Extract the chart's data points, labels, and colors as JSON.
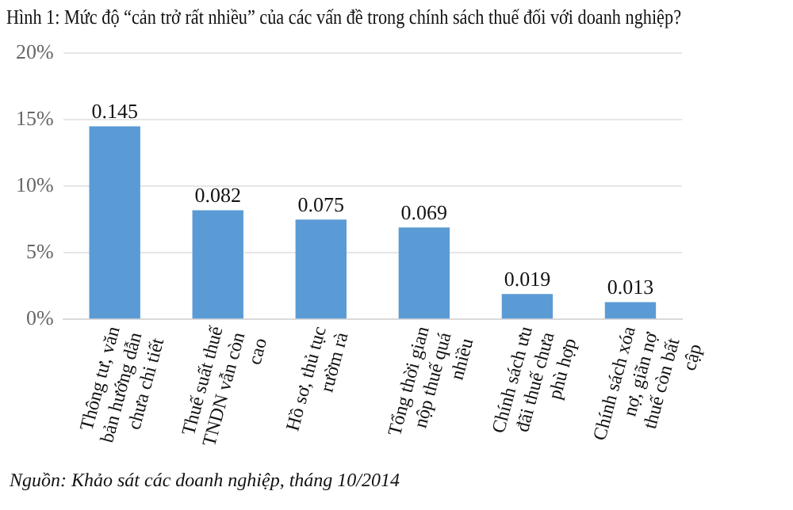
{
  "chart_data": {
    "type": "bar",
    "title": "Hình 1: Mức độ “cản trở rất nhiều” của các vấn đề trong chính sách thuế đối với doanh nghiệp?",
    "categories": [
      "Thông tư, văn bản hướng dẫn chưa chi tiết",
      "Thuế suất thuế TNDN vẫn còn cao",
      "Hồ sơ, thủ tục rườm rà",
      "Tổng thời gian nộp thuế quá nhiều",
      "Chính sách ưu đãi thuế chưa phù hợp",
      "Chính sách xóa nợ, giãn nợ thuế còn bất cập"
    ],
    "values": [
      0.145,
      0.082,
      0.075,
      0.069,
      0.019,
      0.013
    ],
    "value_labels": [
      "0.145",
      "0.082",
      "0.075",
      "0.069",
      "0.019",
      "0.013"
    ],
    "color": "#5b9bd5",
    "ylim": [
      0,
      0.2
    ],
    "yticks": [
      {
        "value": 0,
        "label": "0%"
      },
      {
        "value": 0.05,
        "label": "5%"
      },
      {
        "value": 0.1,
        "label": "10%"
      },
      {
        "value": 0.15,
        "label": "15%"
      },
      {
        "value": 0.2,
        "label": "20%"
      }
    ],
    "grid": "y",
    "annotations": [
      "Nguồn: Khảo sát các doanh nghiệp, tháng 10/2014"
    ]
  }
}
